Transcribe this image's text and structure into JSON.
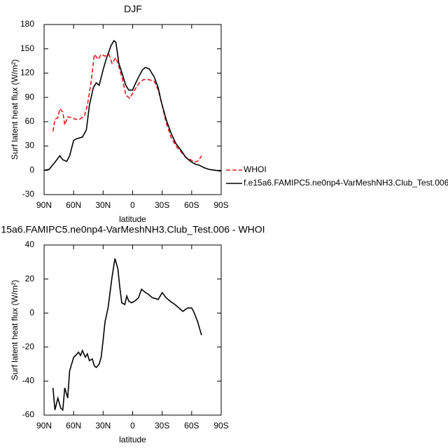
{
  "chart_data": [
    {
      "type": "line",
      "title": "DJF",
      "x_label": "latitude",
      "y_label": "Surf latent heat flux (W/m²)",
      "xlim": [
        90,
        -90
      ],
      "xticks": [
        {
          "value": 90,
          "label": "90N"
        },
        {
          "value": 60,
          "label": "60N"
        },
        {
          "value": 30,
          "label": "30N"
        },
        0,
        {
          "value": -30,
          "label": "30S"
        },
        {
          "value": -60,
          "label": "60S"
        },
        {
          "value": -90,
          "label": "90S"
        }
      ],
      "ylim": [
        -30,
        180
      ],
      "yticks": [
        -30,
        0,
        30,
        60,
        90,
        120,
        150,
        180
      ],
      "legend": "right",
      "series": [
        {
          "name": "WHOI",
          "color": "#e31a1c",
          "line_style": "dashed",
          "x": [
            81,
            79,
            76,
            74,
            71,
            69,
            66,
            62,
            58,
            54,
            49,
            46,
            42,
            39,
            35,
            32,
            28,
            24,
            21,
            17,
            14,
            10,
            7,
            3,
            0,
            -4,
            -7,
            -11,
            -16,
            -22,
            -26,
            -30,
            -34,
            -39,
            -44,
            -49,
            -54,
            -59,
            -63,
            -67,
            -70
          ],
          "values": [
            48,
            63,
            65,
            76,
            72,
            56,
            66,
            65,
            63,
            63,
            67,
            80,
            111,
            143,
            137,
            143,
            141,
            143,
            132,
            139,
            128,
            111,
            93,
            89,
            95,
            103,
            108,
            112,
            112,
            110,
            99,
            80,
            59,
            41,
            30,
            23,
            16,
            13,
            10,
            12,
            18
          ]
        },
        {
          "name": "f.e15a6.FAMIPC5.ne0np4-VarMeshNH3.Club_Test.006",
          "color": "#000000",
          "line_style": "solid",
          "x": [
            90,
            85,
            79,
            74,
            71,
            67,
            64,
            60,
            57,
            51,
            47,
            44,
            40,
            37,
            34,
            30,
            27,
            22,
            19,
            17,
            14,
            10,
            7,
            4,
            0,
            -2,
            -6,
            -10,
            -13,
            -17,
            -22,
            -26,
            -29,
            -34,
            -39,
            -44,
            -49,
            -54,
            -59,
            -63,
            -68,
            -73,
            -78,
            -84,
            -90
          ],
          "values": [
            0,
            1,
            10,
            18,
            13,
            11,
            18,
            37,
            39,
            41,
            50,
            80,
            102,
            108,
            105,
            124,
            137,
            154,
            160,
            158,
            132,
            117,
            105,
            99,
            99,
            105,
            115,
            124,
            127,
            125,
            115,
            102,
            85,
            63,
            46,
            33,
            25,
            16,
            11,
            8,
            6,
            3,
            1,
            0,
            -1
          ]
        }
      ]
    },
    {
      "type": "line",
      "title": "15a6.FAMIPC5.ne0np4-VarMeshNH3.Club_Test.006 - WHOI",
      "x_label": "latitude",
      "y_label": "Surf latent heat flux (W/m²)",
      "xlim": [
        90,
        -90
      ],
      "xticks": [
        {
          "value": 90,
          "label": "90N"
        },
        {
          "value": 60,
          "label": "60N"
        },
        {
          "value": 30,
          "label": "30N"
        },
        0,
        {
          "value": -30,
          "label": "30S"
        },
        {
          "value": -60,
          "label": "60S"
        },
        {
          "value": -90,
          "label": "90S"
        }
      ],
      "ylim": [
        -60,
        40
      ],
      "yticks": [
        -60,
        -40,
        -20,
        0,
        20,
        40
      ],
      "series": [
        {
          "color": "#000000",
          "line_style": "solid",
          "x": [
            81,
            79,
            76,
            73,
            71,
            69,
            66,
            64,
            60,
            58,
            55,
            53,
            51,
            48,
            46,
            44,
            41,
            39,
            37,
            34,
            32,
            30,
            28,
            25,
            23,
            21,
            18,
            15,
            13,
            11,
            8,
            6,
            4,
            1,
            -2,
            -6,
            -9,
            -13,
            -16,
            -20,
            -26,
            -30,
            -34,
            -38,
            -43,
            -47,
            -51,
            -56,
            -60,
            -62,
            -66,
            -70
          ],
          "values": [
            -44,
            -57,
            -50,
            -56,
            -57,
            -44,
            -50,
            -34,
            -26,
            -25,
            -23,
            -25,
            -22,
            -26,
            -24,
            -28,
            -27,
            -31,
            -32,
            -30,
            -26,
            -16,
            -5,
            3,
            12,
            21,
            32,
            26,
            15,
            6,
            5,
            10,
            7,
            6,
            7,
            9,
            14,
            12,
            11,
            9,
            8,
            12,
            9,
            7,
            5,
            3,
            1,
            3,
            3,
            1,
            -5,
            -13
          ]
        }
      ]
    }
  ]
}
